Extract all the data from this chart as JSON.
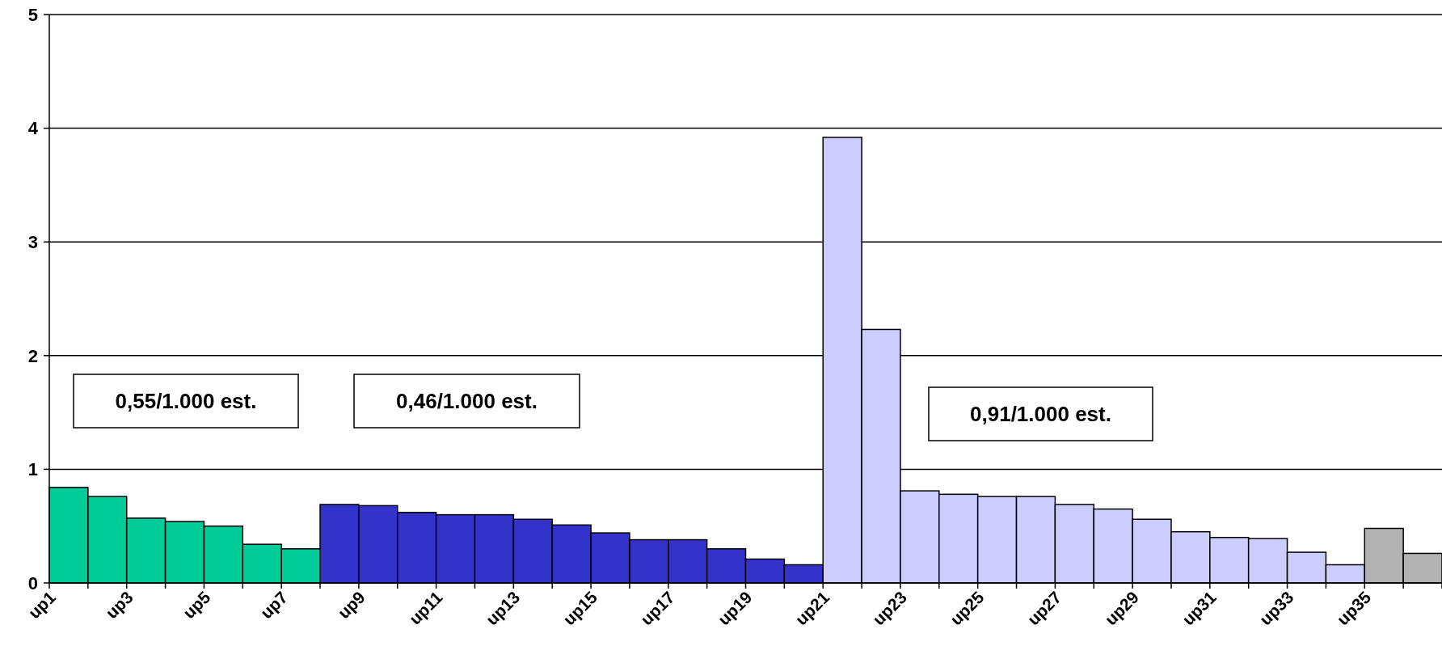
{
  "chart_data": {
    "type": "bar",
    "categories": [
      "up1",
      null,
      "up3",
      null,
      "up5",
      null,
      "up7",
      null,
      "up9",
      null,
      "up11",
      null,
      "up13",
      null,
      "up15",
      null,
      "up17",
      null,
      "up19",
      null,
      "up21",
      null,
      "up23",
      null,
      "up25",
      null,
      "up27",
      null,
      "up29",
      null,
      "up31",
      null,
      "up33",
      null,
      "up35",
      null
    ],
    "values": [
      0.84,
      0.76,
      0.57,
      0.54,
      0.5,
      0.34,
      0.3,
      0.69,
      0.68,
      0.62,
      0.6,
      0.6,
      0.56,
      0.51,
      0.44,
      0.38,
      0.38,
      0.3,
      0.21,
      0.16,
      3.92,
      2.23,
      0.81,
      0.78,
      0.76,
      0.76,
      0.69,
      0.65,
      0.56,
      0.45,
      0.4,
      0.39,
      0.27,
      0.16,
      0.48,
      0.26
    ],
    "colors": [
      "#00cc99",
      "#00cc99",
      "#00cc99",
      "#00cc99",
      "#00cc99",
      "#00cc99",
      "#00cc99",
      "#3333cc",
      "#3333cc",
      "#3333cc",
      "#3333cc",
      "#3333cc",
      "#3333cc",
      "#3333cc",
      "#3333cc",
      "#3333cc",
      "#3333cc",
      "#3333cc",
      "#3333cc",
      "#3333cc",
      "#ccccff",
      "#ccccff",
      "#ccccff",
      "#ccccff",
      "#ccccff",
      "#ccccff",
      "#ccccff",
      "#ccccff",
      "#ccccff",
      "#ccccff",
      "#ccccff",
      "#ccccff",
      "#ccccff",
      "#ccccff",
      "#b2b2b2",
      "#b2b2b2"
    ],
    "ylim": [
      0,
      5
    ],
    "yticks": [
      0,
      1,
      2,
      3,
      4,
      5
    ],
    "grid": "y",
    "annotations": [
      "0,55/1.000 est.",
      "0,46/1.000 est.",
      "0,91/1.000 est."
    ]
  }
}
